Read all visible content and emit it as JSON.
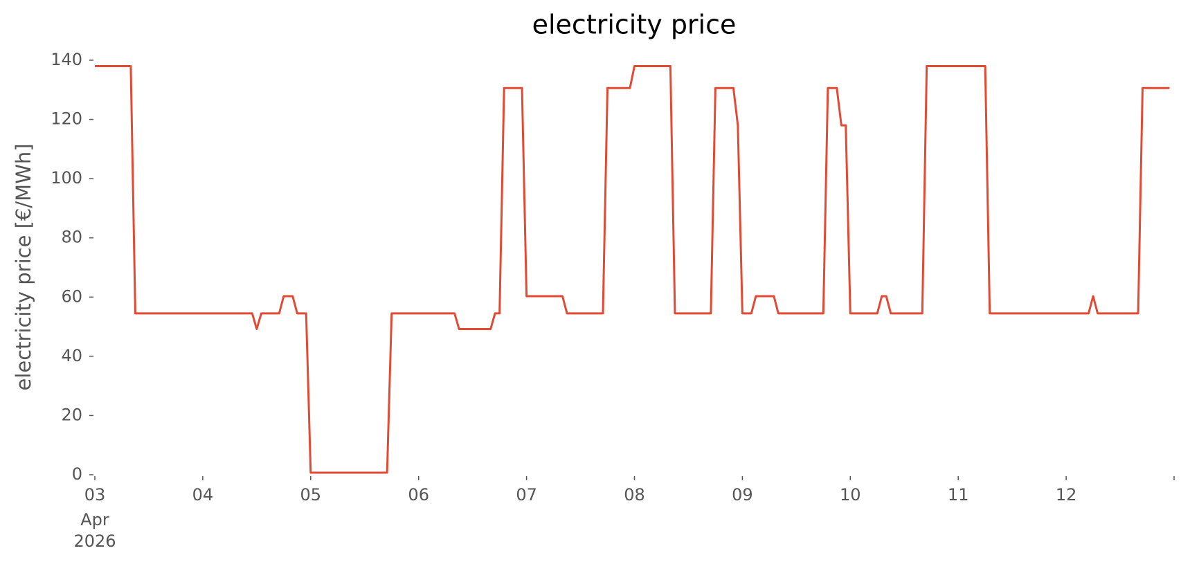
{
  "chart_data": {
    "type": "line",
    "title": "electricity price",
    "ylabel": "electricity price [€/MWh]",
    "color": "#e24a33",
    "xlim": [
      3,
      13
    ],
    "xticks": [
      {
        "value": 3,
        "label": "03"
      },
      {
        "value": 4,
        "label": "04"
      },
      {
        "value": 5,
        "label": "05"
      },
      {
        "value": 6,
        "label": "06"
      },
      {
        "value": 7,
        "label": "07"
      },
      {
        "value": 8,
        "label": "08"
      },
      {
        "value": 9,
        "label": "09"
      },
      {
        "value": 10,
        "label": "10"
      },
      {
        "value": 11,
        "label": "11"
      },
      {
        "value": 12,
        "label": "12"
      },
      {
        "value": 13,
        "label": null
      }
    ],
    "x_tick_sublabels": [
      "Apr",
      "2026"
    ],
    "ylim": [
      0,
      140
    ],
    "yticks": [
      0,
      20,
      40,
      60,
      80,
      100,
      120,
      140
    ],
    "grid": false,
    "x": [
      3.0,
      3.333,
      3.375,
      4.458,
      4.5,
      4.542,
      4.708,
      4.75,
      4.833,
      4.875,
      4.958,
      5.0,
      5.708,
      5.75,
      6.333,
      6.375,
      6.667,
      6.708,
      6.75,
      6.792,
      6.958,
      7.0,
      7.333,
      7.375,
      7.708,
      7.75,
      7.958,
      8.0,
      8.333,
      8.375,
      8.708,
      8.75,
      8.917,
      8.958,
      9.0,
      9.083,
      9.125,
      9.292,
      9.333,
      9.75,
      9.792,
      9.875,
      9.917,
      9.958,
      10.0,
      10.25,
      10.292,
      10.333,
      10.375,
      10.667,
      10.708,
      11.25,
      11.292,
      12.208,
      12.25,
      12.292,
      12.667,
      12.708,
      12.958
    ],
    "values": [
      138,
      138,
      54.5,
      54.5,
      49.2,
      54.5,
      54.5,
      60.3,
      60.3,
      54.5,
      54.5,
      0.7,
      0.7,
      54.5,
      54.5,
      49.2,
      49.2,
      54.5,
      54.5,
      130.6,
      130.6,
      60.3,
      60.3,
      54.5,
      54.5,
      130.6,
      130.6,
      138,
      138,
      54.5,
      54.5,
      130.6,
      130.6,
      118,
      54.5,
      54.5,
      60.3,
      60.3,
      54.5,
      54.5,
      130.6,
      130.6,
      118,
      118,
      54.5,
      54.5,
      60.3,
      60.3,
      54.5,
      54.5,
      138,
      138,
      54.5,
      54.5,
      60.3,
      54.5,
      54.5,
      130.6,
      130.6
    ]
  }
}
